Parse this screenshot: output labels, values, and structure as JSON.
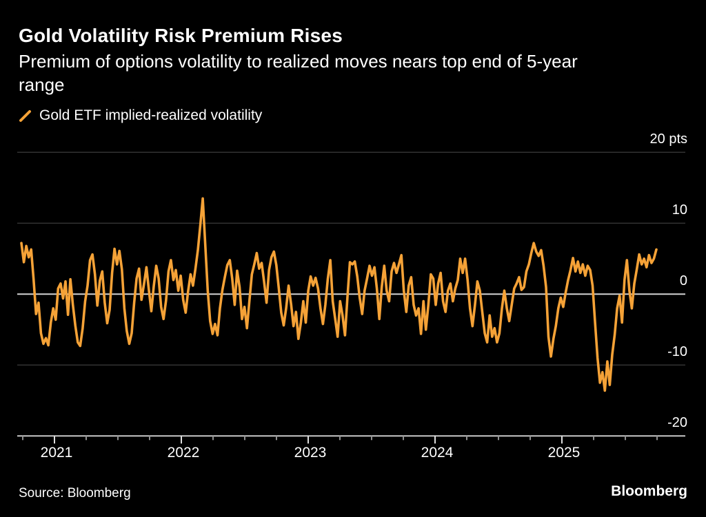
{
  "header": {
    "title": "Gold Volatility Risk Premium Rises",
    "subtitle": "Premium of options volatility to realized moves nears top end of 5-year\nrange"
  },
  "legend": {
    "label": "Gold ETF implied-realized volatility"
  },
  "footer": {
    "source": "Source: Bloomberg",
    "brand": "Bloomberg"
  },
  "chart_data": {
    "type": "line",
    "title": "Gold Volatility Risk Premium Rises",
    "xlabel": "",
    "ylabel": "pts",
    "ylim": [
      -20,
      20
    ],
    "grid": "horizontal gridlines on, zero line emphasized",
    "legend_position": "top-left above plot",
    "y_ticks": [
      {
        "value": 20,
        "label": "20 pts"
      },
      {
        "value": 10,
        "label": "10"
      },
      {
        "value": 0,
        "label": "0"
      },
      {
        "value": -10,
        "label": "-10"
      },
      {
        "value": -20,
        "label": "-20"
      }
    ],
    "x_ticks": [
      {
        "label": "2021"
      },
      {
        "label": "2022"
      },
      {
        "label": "2023"
      },
      {
        "label": "2024"
      },
      {
        "label": "2025"
      }
    ],
    "x_minor_ticks": "quarterly",
    "x_range": [
      "2020-11",
      "2025-10"
    ],
    "frequency": "weekly",
    "colors": {
      "background": "#000000",
      "text": "#FFFFFF",
      "series": "#F5A237",
      "gridline": "#323232",
      "zero_line": "#D4D4D4",
      "axis_line": "#C8C8C8",
      "tick_major": "#E0E0E0",
      "tick_minor": "#8F8F8F"
    },
    "series": [
      {
        "name": "Gold ETF implied-realized volatility",
        "color": "#F5A237",
        "values": [
          7.2,
          4.5,
          6.8,
          5.2,
          6.3,
          2.0,
          -2.8,
          -1.2,
          -5.5,
          -7.0,
          -6.2,
          -7.2,
          -4.0,
          -2.0,
          -3.6,
          0.8,
          1.5,
          -0.6,
          1.8,
          -2.9,
          2.1,
          -1.5,
          -4.4,
          -6.8,
          -7.3,
          -4.8,
          -1.0,
          1.2,
          4.8,
          5.6,
          2.8,
          -1.6,
          1.9,
          3.2,
          -1.2,
          -4.1,
          -2.2,
          3.0,
          6.4,
          4.2,
          6.1,
          3.5,
          -2.0,
          -5.2,
          -7.0,
          -5.5,
          -1.2,
          2.2,
          3.6,
          -0.8,
          1.4,
          3.8,
          0.6,
          -2.4,
          1.1,
          4.0,
          2.2,
          -1.8,
          -3.5,
          -0.9,
          3.2,
          4.8,
          2.0,
          3.4,
          0.5,
          2.6,
          -0.8,
          -2.6,
          0.4,
          2.8,
          1.2,
          3.6,
          6.2,
          9.8,
          13.5,
          7.0,
          0.5,
          -3.8,
          -5.6,
          -4.2,
          -5.8,
          -2.0,
          0.6,
          2.4,
          4.1,
          4.8,
          2.2,
          -1.5,
          3.3,
          1.0,
          -3.5,
          -1.8,
          -4.8,
          -1.0,
          2.8,
          4.2,
          5.8,
          3.6,
          4.4,
          1.8,
          -1.2,
          3.4,
          5.2,
          6.0,
          4.1,
          0.8,
          -2.6,
          -4.4,
          -2.0,
          1.2,
          -1.4,
          -4.5,
          -2.5,
          -6.3,
          -4.0,
          -1.0,
          -4.0,
          0.5,
          2.5,
          1.2,
          2.3,
          0.8,
          -2.0,
          -4.2,
          -1.5,
          2.2,
          4.8,
          -1.0,
          -3.5,
          -6.0,
          -1.0,
          -3.0,
          -5.8,
          -0.5,
          4.5,
          4.2,
          4.6,
          2.5,
          -0.5,
          -2.8,
          0.5,
          2.2,
          4.0,
          2.6,
          3.8,
          0.8,
          -3.5,
          1.0,
          4.0,
          0.5,
          -1.0,
          3.2,
          4.4,
          3.0,
          4.2,
          5.5,
          0.5,
          -2.5,
          1.2,
          2.4,
          -1.5,
          -3.0,
          -2.0,
          -5.6,
          -1.0,
          -5.0,
          -1.5,
          2.8,
          2.2,
          -1.5,
          1.5,
          3.0,
          -1.0,
          -2.5,
          0.5,
          1.5,
          -1.0,
          0.8,
          2.0,
          5.0,
          3.0,
          5.0,
          2.0,
          -2.0,
          -4.5,
          -1.5,
          1.8,
          0.5,
          -2.5,
          -5.5,
          -6.8,
          -3.0,
          -6.0,
          -4.8,
          -6.8,
          -5.5,
          -2.0,
          0.5,
          -2.0,
          -3.8,
          -1.5,
          0.8,
          1.5,
          2.4,
          0.6,
          1.0,
          3.2,
          4.2,
          5.8,
          7.2,
          6.0,
          5.4,
          6.2,
          4.0,
          1.0,
          -6.0,
          -8.8,
          -6.3,
          -4.5,
          -2.0,
          -0.5,
          -1.8,
          0.2,
          2.0,
          3.4,
          5.1,
          3.2,
          4.6,
          3.0,
          4.2,
          2.6,
          4.0,
          3.4,
          1.2,
          -4.0,
          -9.0,
          -12.5,
          -11.0,
          -13.6,
          -9.5,
          -12.8,
          -8.5,
          -5.7,
          -2.0,
          -0.2,
          -4.0,
          2.0,
          4.8,
          0.5,
          -2.0,
          1.5,
          3.5,
          5.6,
          4.2,
          5.0,
          3.8,
          5.5,
          4.4,
          5.0,
          6.3
        ]
      }
    ]
  }
}
